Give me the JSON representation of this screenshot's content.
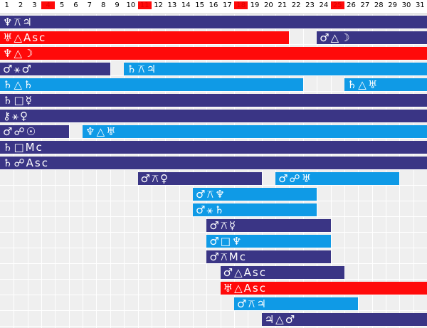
{
  "days": [
    {
      "n": "1",
      "w": false
    },
    {
      "n": "2",
      "w": false
    },
    {
      "n": "3",
      "w": false
    },
    {
      "n": "4",
      "w": true
    },
    {
      "n": "5",
      "w": false
    },
    {
      "n": "6",
      "w": false
    },
    {
      "n": "7",
      "w": false
    },
    {
      "n": "8",
      "w": false
    },
    {
      "n": "9",
      "w": false
    },
    {
      "n": "10",
      "w": false
    },
    {
      "n": "11",
      "w": true
    },
    {
      "n": "12",
      "w": false
    },
    {
      "n": "13",
      "w": false
    },
    {
      "n": "14",
      "w": false
    },
    {
      "n": "15",
      "w": false
    },
    {
      "n": "16",
      "w": false
    },
    {
      "n": "17",
      "w": false
    },
    {
      "n": "18",
      "w": true
    },
    {
      "n": "19",
      "w": false
    },
    {
      "n": "20",
      "w": false
    },
    {
      "n": "21",
      "w": false
    },
    {
      "n": "22",
      "w": false
    },
    {
      "n": "23",
      "w": false
    },
    {
      "n": "24",
      "w": false
    },
    {
      "n": "25",
      "w": true
    },
    {
      "n": "26",
      "w": false
    },
    {
      "n": "27",
      "w": false
    },
    {
      "n": "28",
      "w": false
    },
    {
      "n": "29",
      "w": false
    },
    {
      "n": "30",
      "w": false
    },
    {
      "n": "31",
      "w": false
    }
  ],
  "colors": {
    "navy": "#3a3585",
    "sky": "#0f9ae6",
    "red": "#ff0a0a",
    "weekend": "#e00000"
  },
  "transits": [
    {
      "label": "♆⚻♃",
      "color": "navy",
      "row": 0,
      "start": 1,
      "end": 31
    },
    {
      "label": "♅△Asc",
      "color": "red",
      "row": 1,
      "start": 1,
      "end": 21
    },
    {
      "label": "♂△☽",
      "color": "navy",
      "row": 1,
      "start": 24,
      "end": 31
    },
    {
      "label": "♆△☽",
      "color": "red",
      "row": 2,
      "start": 1,
      "end": 31
    },
    {
      "label": "♂⚹♂",
      "color": "navy",
      "row": 3,
      "start": 1,
      "end": 8
    },
    {
      "label": "♄⚻♃",
      "color": "sky",
      "row": 3,
      "start": 10,
      "end": 31
    },
    {
      "label": "♄△♄",
      "color": "sky",
      "row": 4,
      "start": 1,
      "end": 22
    },
    {
      "label": "♄△♅",
      "color": "sky",
      "row": 4,
      "start": 26,
      "end": 31
    },
    {
      "label": "♄□☿",
      "color": "navy",
      "row": 5,
      "start": 1,
      "end": 31
    },
    {
      "label": "⚷⚹♀",
      "color": "navy",
      "row": 6,
      "start": 1,
      "end": 31
    },
    {
      "label": "♂☍☉",
      "color": "navy",
      "row": 7,
      "start": 1,
      "end": 5
    },
    {
      "label": "♆△♅",
      "color": "sky",
      "row": 7,
      "start": 7,
      "end": 31
    },
    {
      "label": "♄□Mc",
      "color": "navy",
      "row": 8,
      "start": 1,
      "end": 31
    },
    {
      "label": "♄☍Asc",
      "color": "navy",
      "row": 9,
      "start": 1,
      "end": 31
    },
    {
      "label": "♂⚻♀",
      "color": "navy",
      "row": 10,
      "start": 11,
      "end": 19
    },
    {
      "label": "♂☍♅",
      "color": "sky",
      "row": 10,
      "start": 21,
      "end": 29
    },
    {
      "label": "♂⚻♆",
      "color": "sky",
      "row": 11,
      "start": 15,
      "end": 23
    },
    {
      "label": "♂⚹♄",
      "color": "sky",
      "row": 12,
      "start": 15,
      "end": 23
    },
    {
      "label": "♂⚻☿",
      "color": "navy",
      "row": 13,
      "start": 16,
      "end": 24
    },
    {
      "label": "♂□♆",
      "color": "sky",
      "row": 14,
      "start": 16,
      "end": 24
    },
    {
      "label": "♂⚻Mc",
      "color": "navy",
      "row": 15,
      "start": 16,
      "end": 24
    },
    {
      "label": "♂△Asc",
      "color": "navy",
      "row": 16,
      "start": 17,
      "end": 25
    },
    {
      "label": "♅△Asc",
      "color": "red",
      "row": 17,
      "start": 17,
      "end": 31
    },
    {
      "label": "♂⚻♃",
      "color": "sky",
      "row": 18,
      "start": 18,
      "end": 26
    },
    {
      "label": "♃△♂",
      "color": "navy",
      "row": 19,
      "start": 20,
      "end": 31
    }
  ]
}
